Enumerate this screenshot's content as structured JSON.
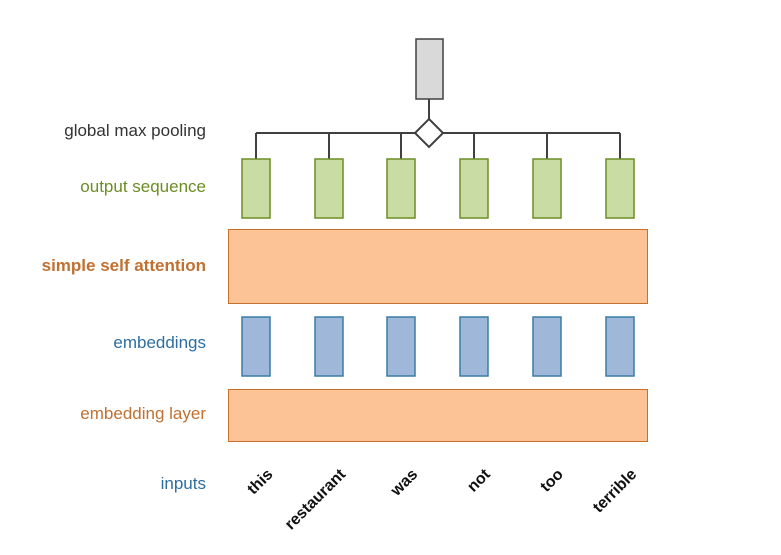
{
  "labels": {
    "global_max_pooling": "global max pooling",
    "output_sequence": "output sequence",
    "simple_self_attention": "simple self attention",
    "embeddings": "embeddings",
    "embedding_layer": "embedding layer",
    "inputs": "inputs"
  },
  "tokens": [
    "this",
    "restaurant",
    "was",
    "not",
    "too",
    "terrible"
  ],
  "colors": {
    "output_fill": "#c8dca4",
    "output_stroke": "#6b8e23",
    "embedding_fill": "#9fb8da",
    "embedding_stroke": "#3a7ca5",
    "block_fill": "#fcc396",
    "block_stroke": "#c86f2c",
    "pool_fill": "#d9d9d9",
    "line": "#404040"
  }
}
